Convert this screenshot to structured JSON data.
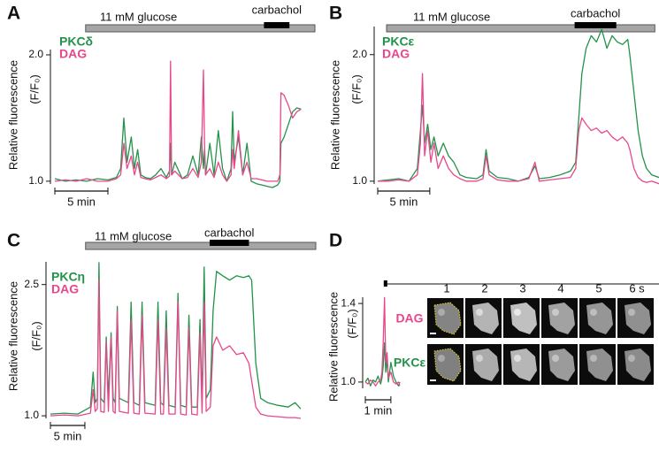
{
  "chart_data": [
    {
      "type": "line",
      "panel": "A",
      "ylabel": "Relative fluorescence",
      "ysublabel": "(F/F₀)",
      "xlim": [
        0,
        24.5
      ],
      "ylim": [
        0.95,
        2.07
      ],
      "yticks": [
        {
          "value": 1,
          "label": "1.0"
        },
        {
          "value": 2,
          "label": "2.0"
        }
      ],
      "stimuli": [
        {
          "label": "11 mM glucose",
          "start": 2.9,
          "end": 24.5,
          "color": "#a6a6a6"
        },
        {
          "label": "carbachol",
          "start": 19.7,
          "end": 22.1,
          "color": "#000000"
        }
      ],
      "scalebar": {
        "value": 5,
        "label": "5 min"
      },
      "x": [
        0,
        1,
        2,
        3,
        4,
        5,
        5.8,
        6.2,
        6.5,
        6.8,
        7.2,
        7.5,
        7.8,
        8.1,
        8.5,
        9,
        9.5,
        10,
        10.5,
        10.8,
        10.9,
        11.0,
        11.3,
        12,
        12.5,
        13,
        13.5,
        13.8,
        14.0,
        14.1,
        14.2,
        14.6,
        15,
        15.4,
        15.8,
        16.2,
        16.6,
        16.75,
        16.9,
        17.3,
        17.7,
        18.1,
        18.5,
        19,
        19.5,
        20,
        20.5,
        21,
        21.2,
        21.3,
        21.6,
        22,
        22.4,
        22.8,
        23.2
      ],
      "series": [
        {
          "name": "PKCδ",
          "color": "#23924a",
          "values": [
            1.02,
            1.0,
            1.01,
            1.0,
            1.02,
            1.01,
            1.03,
            1.1,
            1.5,
            1.15,
            1.35,
            1.1,
            1.25,
            1.05,
            1.03,
            1.02,
            1.05,
            1.1,
            1.03,
            1.08,
            1.3,
            1.05,
            1.15,
            1.02,
            1.05,
            1.2,
            1.05,
            1.35,
            1.1,
            1.25,
            1.05,
            1.3,
            1.05,
            1.4,
            1.1,
            1.0,
            1.1,
            1.55,
            1.15,
            1.35,
            1.05,
            1.3,
            1.0,
            0.98,
            0.97,
            0.96,
            0.95,
            0.97,
            1.0,
            1.3,
            1.35,
            1.45,
            1.55,
            1.58,
            1.57
          ]
        },
        {
          "name": "DAG",
          "color": "#e8478c",
          "values": [
            1.0,
            1.01,
            1.0,
            1.02,
            1.0,
            1.0,
            1.02,
            1.05,
            1.3,
            1.1,
            1.2,
            1.05,
            1.15,
            1.03,
            1.02,
            1.01,
            1.03,
            1.05,
            1.02,
            1.04,
            1.95,
            1.05,
            1.08,
            1.02,
            1.03,
            1.1,
            1.03,
            1.15,
            1.88,
            1.3,
            1.05,
            1.1,
            1.03,
            1.15,
            1.05,
            1.0,
            1.05,
            1.25,
            1.1,
            1.4,
            1.05,
            1.15,
            1.02,
            1.02,
            1.01,
            1.0,
            1.0,
            1.0,
            1.05,
            1.7,
            1.68,
            1.6,
            1.5,
            1.55,
            1.57
          ]
        }
      ]
    },
    {
      "type": "line",
      "panel": "B",
      "ylabel": "Relative fluorescence",
      "ysublabel": "(F/F₀)",
      "xlim": [
        0,
        27
      ],
      "ylim": [
        0.95,
        2.25
      ],
      "yticks": [
        {
          "value": 1,
          "label": "1.0"
        },
        {
          "value": 2,
          "label": "2.0"
        }
      ],
      "stimuli": [
        {
          "label": "11 mM glucose",
          "start": 0.85,
          "end": 26.6,
          "color": "#a6a6a6"
        },
        {
          "label": "carbachol",
          "start": 18.9,
          "end": 22.9,
          "color": "#000000"
        }
      ],
      "scalebar": {
        "value": 5,
        "label": "5 min"
      },
      "x": [
        0,
        1,
        2,
        3,
        3.8,
        4.1,
        4.3,
        4.5,
        4.8,
        5.1,
        5.4,
        5.8,
        6.3,
        6.8,
        7.3,
        7.9,
        8.5,
        9.5,
        10.1,
        10.4,
        10.7,
        11.5,
        12.5,
        13.5,
        14.5,
        15.1,
        15.5,
        16.5,
        17.5,
        18.5,
        19,
        19.3,
        19.6,
        20,
        20.5,
        21,
        21.5,
        22,
        22.5,
        23,
        23.5,
        24,
        24.2,
        24.6,
        25,
        25.4,
        25.8,
        26.3,
        27
      ],
      "series": [
        {
          "name": "PKCε",
          "color": "#23924a",
          "values": [
            1.0,
            1.01,
            1.02,
            1.0,
            1.1,
            1.4,
            1.6,
            1.3,
            1.45,
            1.25,
            1.35,
            1.2,
            1.3,
            1.2,
            1.15,
            1.05,
            1.03,
            1.02,
            1.05,
            1.25,
            1.08,
            1.03,
            1.02,
            1.0,
            1.03,
            1.12,
            1.02,
            1.03,
            1.05,
            1.08,
            1.15,
            1.5,
            1.85,
            2.05,
            2.15,
            2.1,
            2.2,
            2.05,
            2.15,
            2.1,
            2.08,
            2.12,
            2.0,
            1.7,
            1.4,
            1.2,
            1.1,
            1.05,
            1.03
          ]
        },
        {
          "name": "DAG",
          "color": "#e8478c",
          "values": [
            1.0,
            1.0,
            1.01,
            1.0,
            1.05,
            1.3,
            1.85,
            1.2,
            1.4,
            1.15,
            1.3,
            1.1,
            1.2,
            1.1,
            1.05,
            1.02,
            1.0,
            1.0,
            1.02,
            1.2,
            1.05,
            1.01,
            1.0,
            1.0,
            1.02,
            1.15,
            1.0,
            1.01,
            1.02,
            1.03,
            1.1,
            1.4,
            1.5,
            1.45,
            1.4,
            1.42,
            1.38,
            1.4,
            1.35,
            1.32,
            1.35,
            1.3,
            1.25,
            1.1,
            1.03,
            1.0,
            0.99,
            1.0,
            0.98
          ]
        }
      ]
    },
    {
      "type": "line",
      "panel": "C",
      "ylabel": "Relative fluorescence",
      "ysublabel": "(F/F₀)",
      "xlim": [
        0,
        38.5
      ],
      "ylim": [
        0.93,
        2.8
      ],
      "yticks": [
        {
          "value": 1,
          "label": "1.0"
        },
        2.5
      ],
      "stimuli": [
        {
          "label": "11 mM glucose",
          "start": 5.1,
          "end": 38.5,
          "color": "#a6a6a6"
        },
        {
          "label": "carbachol",
          "start": 23.1,
          "end": 28.8,
          "color": "#000000"
        }
      ],
      "scalebar": {
        "value": 5,
        "label": "5 min"
      },
      "x": [
        0,
        2,
        4,
        5.8,
        6.2,
        6.5,
        6.8,
        7.05,
        7.3,
        7.8,
        8.1,
        8.4,
        8.8,
        9.1,
        9.4,
        9.7,
        10,
        11.3,
        11.7,
        12.1,
        12.9,
        13.3,
        13.7,
        15.2,
        15.6,
        16,
        16.4,
        16.8,
        17.2,
        18.1,
        18.5,
        18.9,
        19.7,
        20.1,
        20.5,
        21.3,
        21.7,
        22,
        22.3,
        22.6,
        23.2,
        23.6,
        24.1,
        25,
        26,
        27,
        28,
        28.8,
        29.2,
        29.8,
        30.5,
        31.5,
        33,
        34.5,
        35.5,
        36.3
      ],
      "series": [
        {
          "name": "PKCη",
          "color": "#23924a",
          "values": [
            1.02,
            1.03,
            1.02,
            1.1,
            1.5,
            1.15,
            1.2,
            2.75,
            1.2,
            1.15,
            1.9,
            1.2,
            1.95,
            1.2,
            1.15,
            2.25,
            1.2,
            1.15,
            2.3,
            1.15,
            1.12,
            2.3,
            1.15,
            1.12,
            2.3,
            1.15,
            1.12,
            2.2,
            1.12,
            1.1,
            2.4,
            1.12,
            1.1,
            2.15,
            1.1,
            1.1,
            2.1,
            1.15,
            2.7,
            1.2,
            1.3,
            2.2,
            2.65,
            2.6,
            2.55,
            2.6,
            2.58,
            2.6,
            2.55,
            1.6,
            1.2,
            1.15,
            1.12,
            1.1,
            1.15,
            1.08
          ]
        },
        {
          "name": "DAG",
          "color": "#e8478c",
          "values": [
            1.0,
            1.01,
            1.0,
            1.03,
            1.3,
            1.05,
            1.08,
            2.55,
            1.05,
            1.04,
            1.85,
            1.05,
            1.9,
            1.05,
            1.03,
            2.2,
            1.05,
            1.03,
            2.1,
            1.03,
            1.02,
            2.15,
            1.03,
            1.02,
            2.1,
            1.02,
            1.02,
            2.0,
            1.02,
            1.02,
            2.3,
            1.02,
            1.01,
            2.0,
            1.02,
            1.01,
            1.95,
            1.03,
            2.3,
            1.05,
            1.1,
            1.8,
            1.9,
            1.75,
            1.8,
            1.7,
            1.72,
            1.6,
            1.4,
            1.1,
            1.02,
            1.0,
            0.99,
            0.98,
            0.98,
            0.97
          ]
        }
      ]
    },
    {
      "type": "line",
      "panel": "D",
      "ylabel": "Relative fluorescence",
      "ysublabel": "(F/F₀)",
      "xlim": [
        0,
        1.35
      ],
      "ylim": [
        0.95,
        1.45
      ],
      "yticks": [
        {
          "value": 1,
          "label": "1.0"
        },
        1.4
      ],
      "stimuli": [
        {
          "start": 0.72,
          "end": 0.86,
          "color": "#000000"
        }
      ],
      "scalebar": {
        "value": 1,
        "label": "1 min"
      },
      "x": [
        0,
        0.1,
        0.2,
        0.3,
        0.4,
        0.5,
        0.6,
        0.65,
        0.7,
        0.75,
        0.8,
        0.85,
        0.9,
        1.0,
        1.1,
        1.2,
        1.3,
        1.35
      ],
      "series": [
        {
          "name": "PKCε",
          "color": "#23924a",
          "values": [
            1.0,
            1.02,
            0.98,
            1.01,
            1.0,
            1.03,
            0.99,
            1.02,
            1.08,
            1.2,
            1.05,
            1.12,
            1.0,
            1.1,
            1.03,
            1.0,
            0.98,
            1.0
          ]
        },
        {
          "name": "DAG",
          "color": "#e8478c",
          "values": [
            1.0,
            0.99,
            1.01,
            1.0,
            0.98,
            1.0,
            1.01,
            1.05,
            1.2,
            1.43,
            1.1,
            1.15,
            1.02,
            1.05,
            1.0,
            0.99,
            1.0,
            0.98
          ]
        }
      ],
      "image_columns": [
        "1",
        "2",
        "3",
        "4",
        "5",
        "6 s"
      ],
      "image_rows": [
        "DAG",
        "PKCε"
      ]
    }
  ]
}
